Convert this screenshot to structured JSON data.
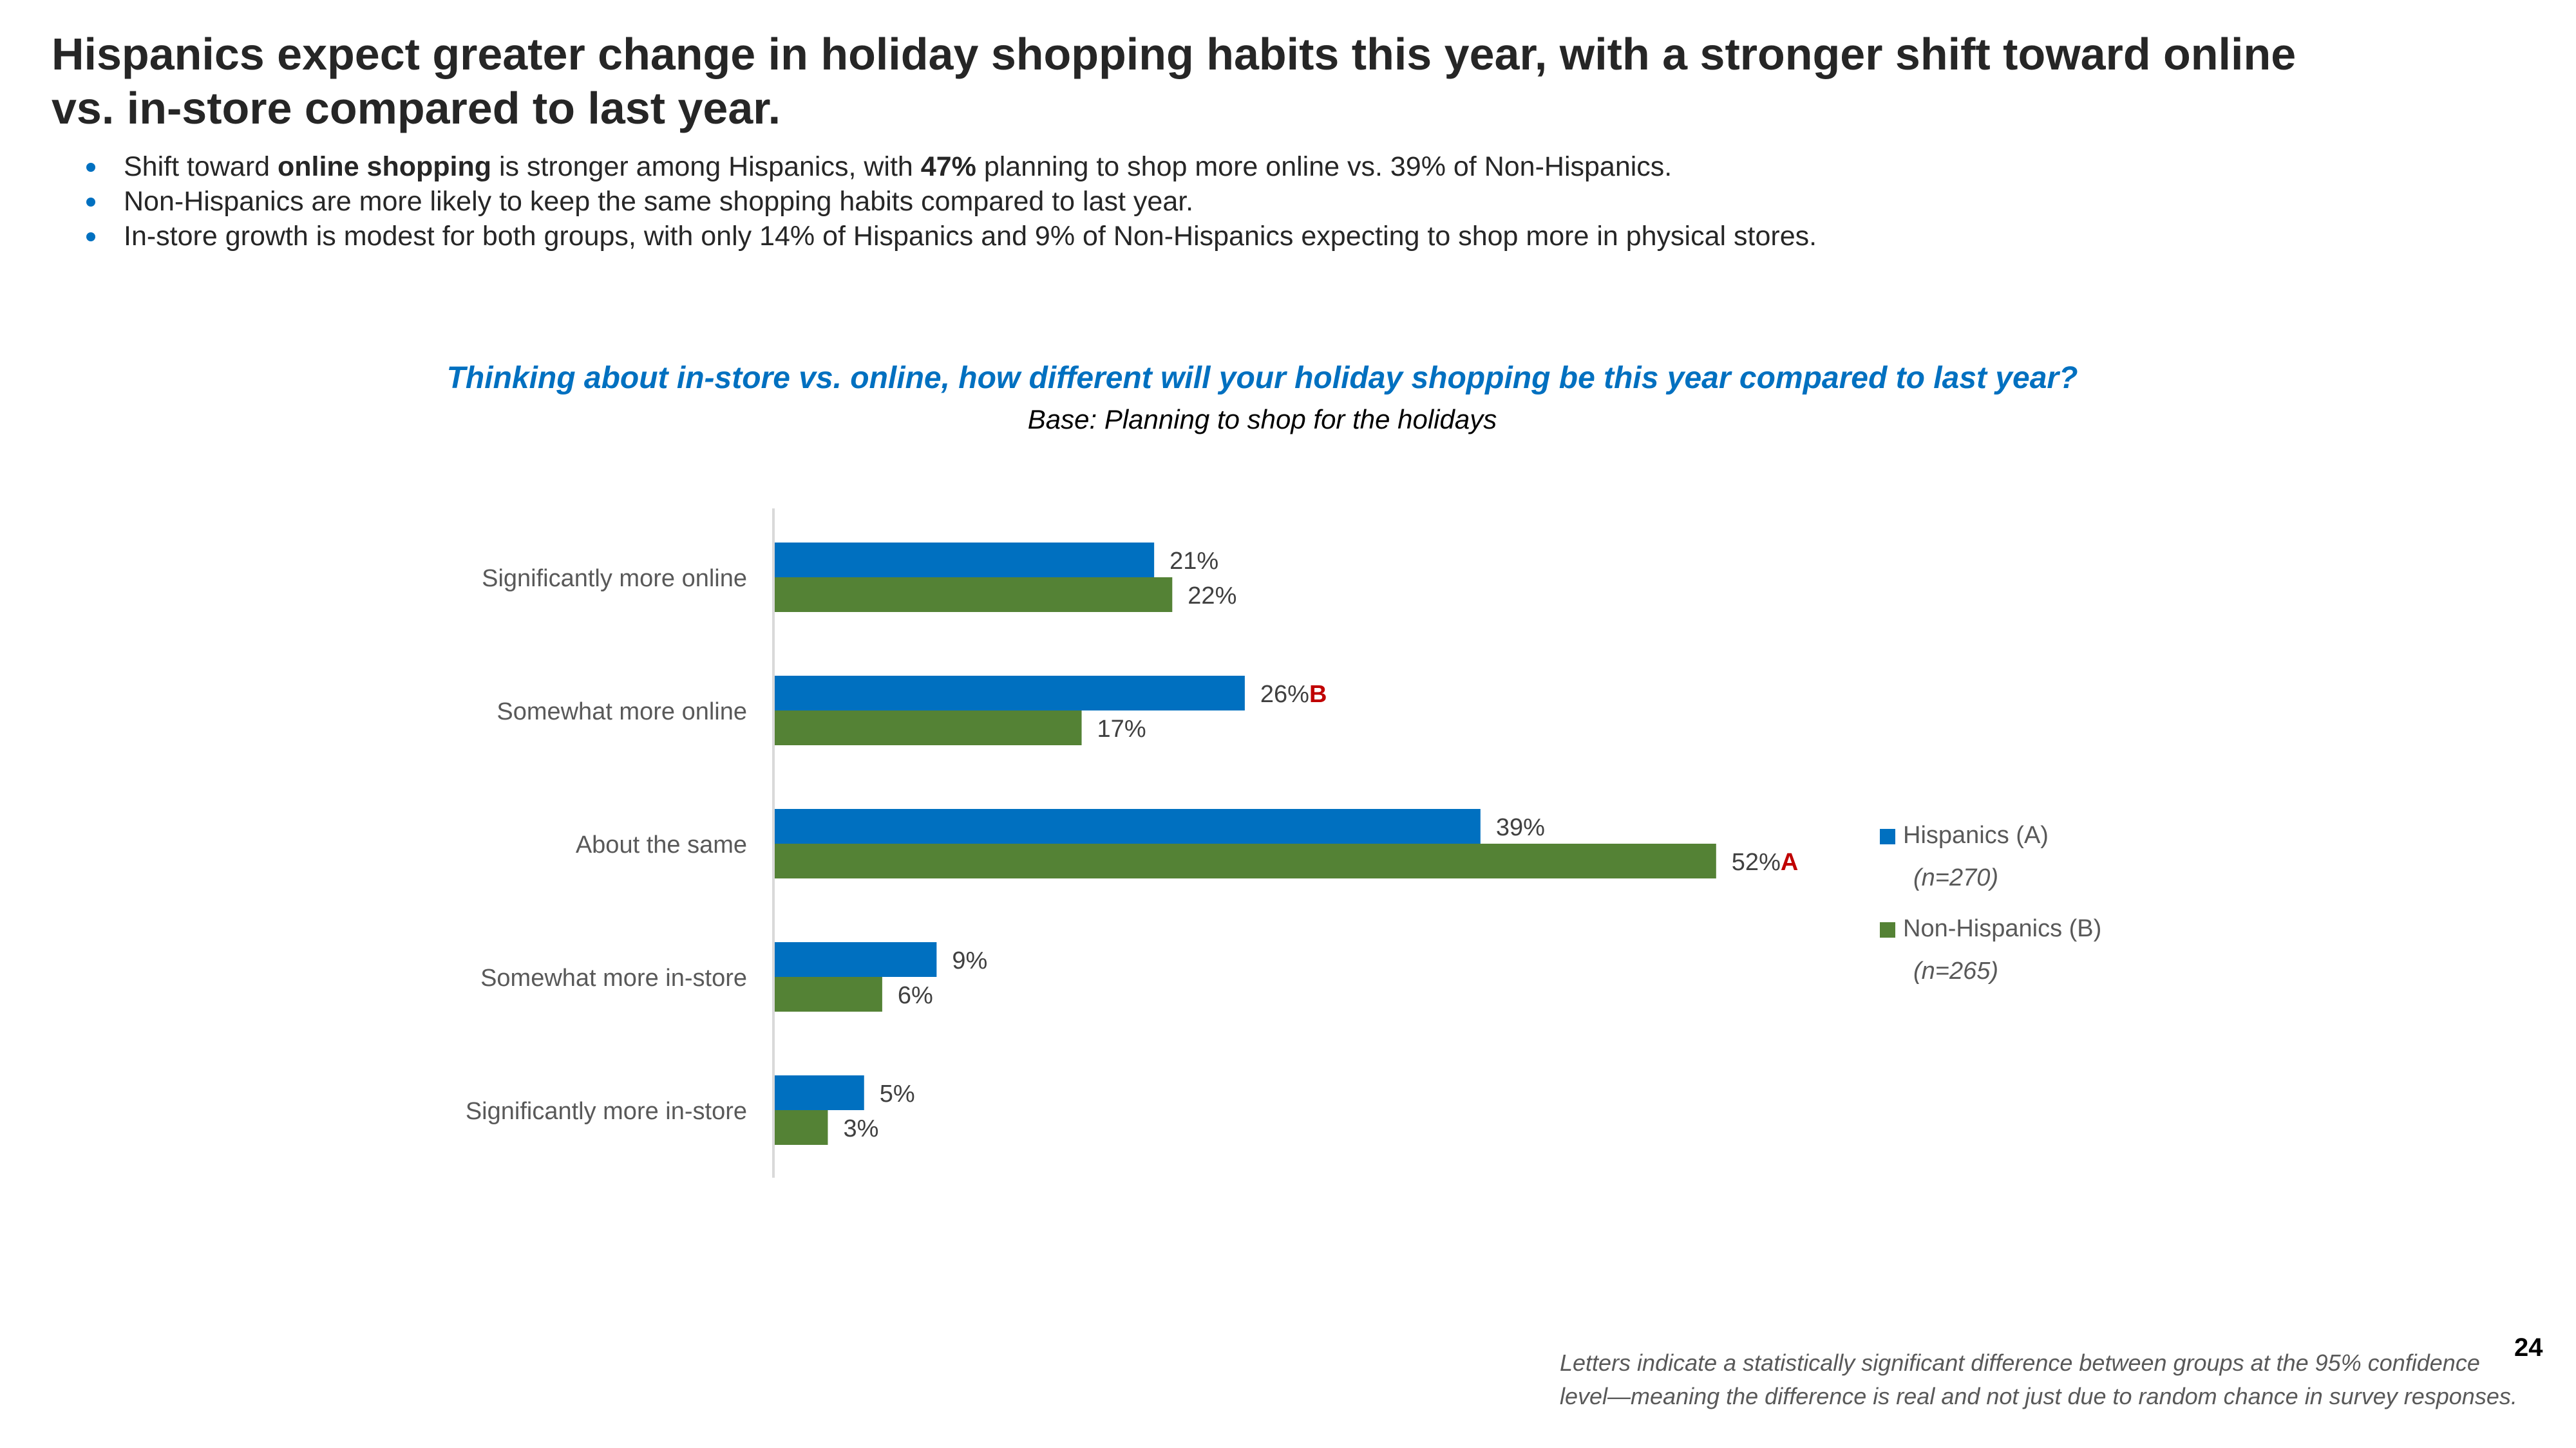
{
  "slide": {
    "title": "Hispanics expect greater change in holiday shopping habits this year, with a stronger shift toward online vs. in-store compared to last year.",
    "bullets": [
      [
        {
          "text": "Shift toward ",
          "bold": false
        },
        {
          "text": "online shopping",
          "bold": true
        },
        {
          "text": " is stronger among Hispanics, with ",
          "bold": false
        },
        {
          "text": "47%",
          "bold": true
        },
        {
          "text": " planning to shop more online vs. 39% of Non-Hispanics.",
          "bold": false
        }
      ],
      [
        {
          "text": "Non-Hispanics  are more likely to keep the same shopping habits compared to last year.",
          "bold": false
        }
      ],
      [
        {
          "text": "In-store growth is modest for both groups, with only 14% of Hispanics and 9% of Non-Hispanics expecting to shop more in physical stores.",
          "bold": false
        }
      ]
    ],
    "question": "Thinking about in-store vs. online, how different will your holiday shopping be this year compared to last year?",
    "base": "Base: Planning to shop for the holidays",
    "footnote": "Letters indicate a statistically significant difference between groups at the 95% confidence level—meaning the difference is real and not just due to random chance in survey responses.",
    "page_number": "24"
  },
  "colors": {
    "hispanics": "#0070C0",
    "non_hispanics": "#548235",
    "significance": "#C00000",
    "axis": "#D9D9D9",
    "label": "#595959",
    "value_label": "#404040"
  },
  "chart_data": {
    "type": "bar",
    "orientation": "horizontal",
    "title": "Thinking about in-store vs. online, how different will your holiday shopping be this year compared to last year?",
    "subtitle": "Base: Planning to shop for the holidays",
    "xlabel": "",
    "ylabel": "",
    "unit": "%",
    "xlim": [
      0,
      55
    ],
    "grid": false,
    "legend_position": "right",
    "categories": [
      "Significantly more online",
      "Somewhat more online",
      "About the same",
      "Somewhat more in-store",
      "Significantly more in-store"
    ],
    "series": [
      {
        "name": "Hispanics (A)",
        "sample": "(n=270)",
        "color": "#0070C0",
        "values": [
          21,
          26,
          39,
          9,
          5
        ],
        "significance": [
          "",
          "B",
          "",
          "",
          ""
        ]
      },
      {
        "name": "Non-Hispanics (B)",
        "sample": "(n=265)",
        "color": "#548235",
        "values": [
          22,
          17,
          52,
          6,
          3
        ],
        "significance": [
          "",
          "",
          "A",
          "",
          ""
        ]
      }
    ]
  }
}
